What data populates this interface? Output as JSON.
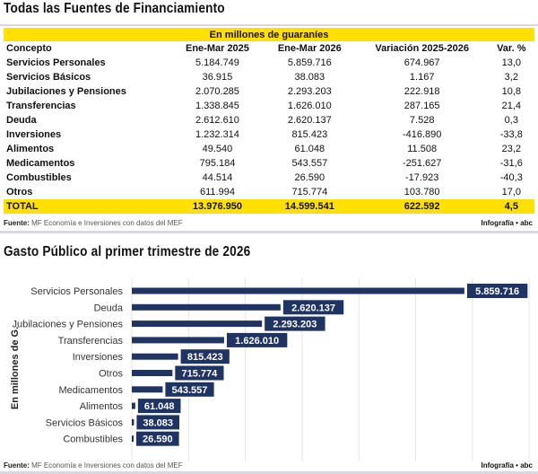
{
  "table": {
    "title": "Todas las Fuentes de Financiamiento",
    "unit": "En millones de guaraníes",
    "headers": [
      "Concepto",
      "Ene-Mar 2025",
      "Ene-Mar 2026",
      "Variación 2025-2026",
      "Var. %"
    ],
    "rows": [
      [
        "Servicios Personales",
        "5.184.749",
        "5.859.716",
        "674.967",
        "13,0"
      ],
      [
        "Servicios Básicos",
        "36.915",
        "38.083",
        "1.167",
        "3,2"
      ],
      [
        "Jubilaciones y Pensiones",
        "2.070.285",
        "2.293.203",
        "222.918",
        "10,8"
      ],
      [
        "Transferencias",
        "1.338.845",
        "1.626.010",
        "287.165",
        "21,4"
      ],
      [
        "Deuda",
        "2.612.610",
        "2.620.137",
        "7.528",
        "0,3"
      ],
      [
        "Inversiones",
        "1.232.314",
        "815.423",
        "-416.890",
        "-33,8"
      ],
      [
        "Alimentos",
        "49.540",
        "61.048",
        "11.508",
        "23,2"
      ],
      [
        "Medicamentos",
        "795.184",
        "543.557",
        "-251.627",
        "-31,6"
      ],
      [
        "Combustibles",
        "44.514",
        "26.590",
        "-17.923",
        "-40,3"
      ],
      [
        "Otros",
        "611.994",
        "715.774",
        "103.780",
        "17,0"
      ]
    ],
    "total": [
      "TOTAL",
      "13.976.950",
      "14.599.541",
      "622.592",
      "4,5"
    ]
  },
  "source_label": "Fuente:",
  "source_text": " MF Economía e Inversiones con datos del MEF",
  "brand": "Infografía • abc",
  "colors": {
    "accent": "#ffe000",
    "bar": "#1f3462"
  },
  "chart_data": {
    "type": "bar",
    "orientation": "horizontal",
    "title": "Gasto Público al primer trimestre de 2026",
    "ylabel": "En millones de G.",
    "categories": [
      "Servicios Personales",
      "Deuda",
      "Jubilaciones y Pensiones",
      "Transferencias",
      "Inversiones",
      "Otros",
      "Medicamentos",
      "Alimentos",
      "Servicios Básicos",
      "Combustibles"
    ],
    "values": [
      5859716,
      2620137,
      2293203,
      1626010,
      815423,
      715774,
      543557,
      61048,
      38083,
      26590
    ],
    "labels": [
      "5.859.716",
      "2.620.137",
      "2.293.203",
      "1.626.010",
      "815.423",
      "715.774",
      "543.557",
      "61.048",
      "38.083",
      "26.590"
    ],
    "xlim": [
      0,
      7000000
    ],
    "grid": true
  }
}
